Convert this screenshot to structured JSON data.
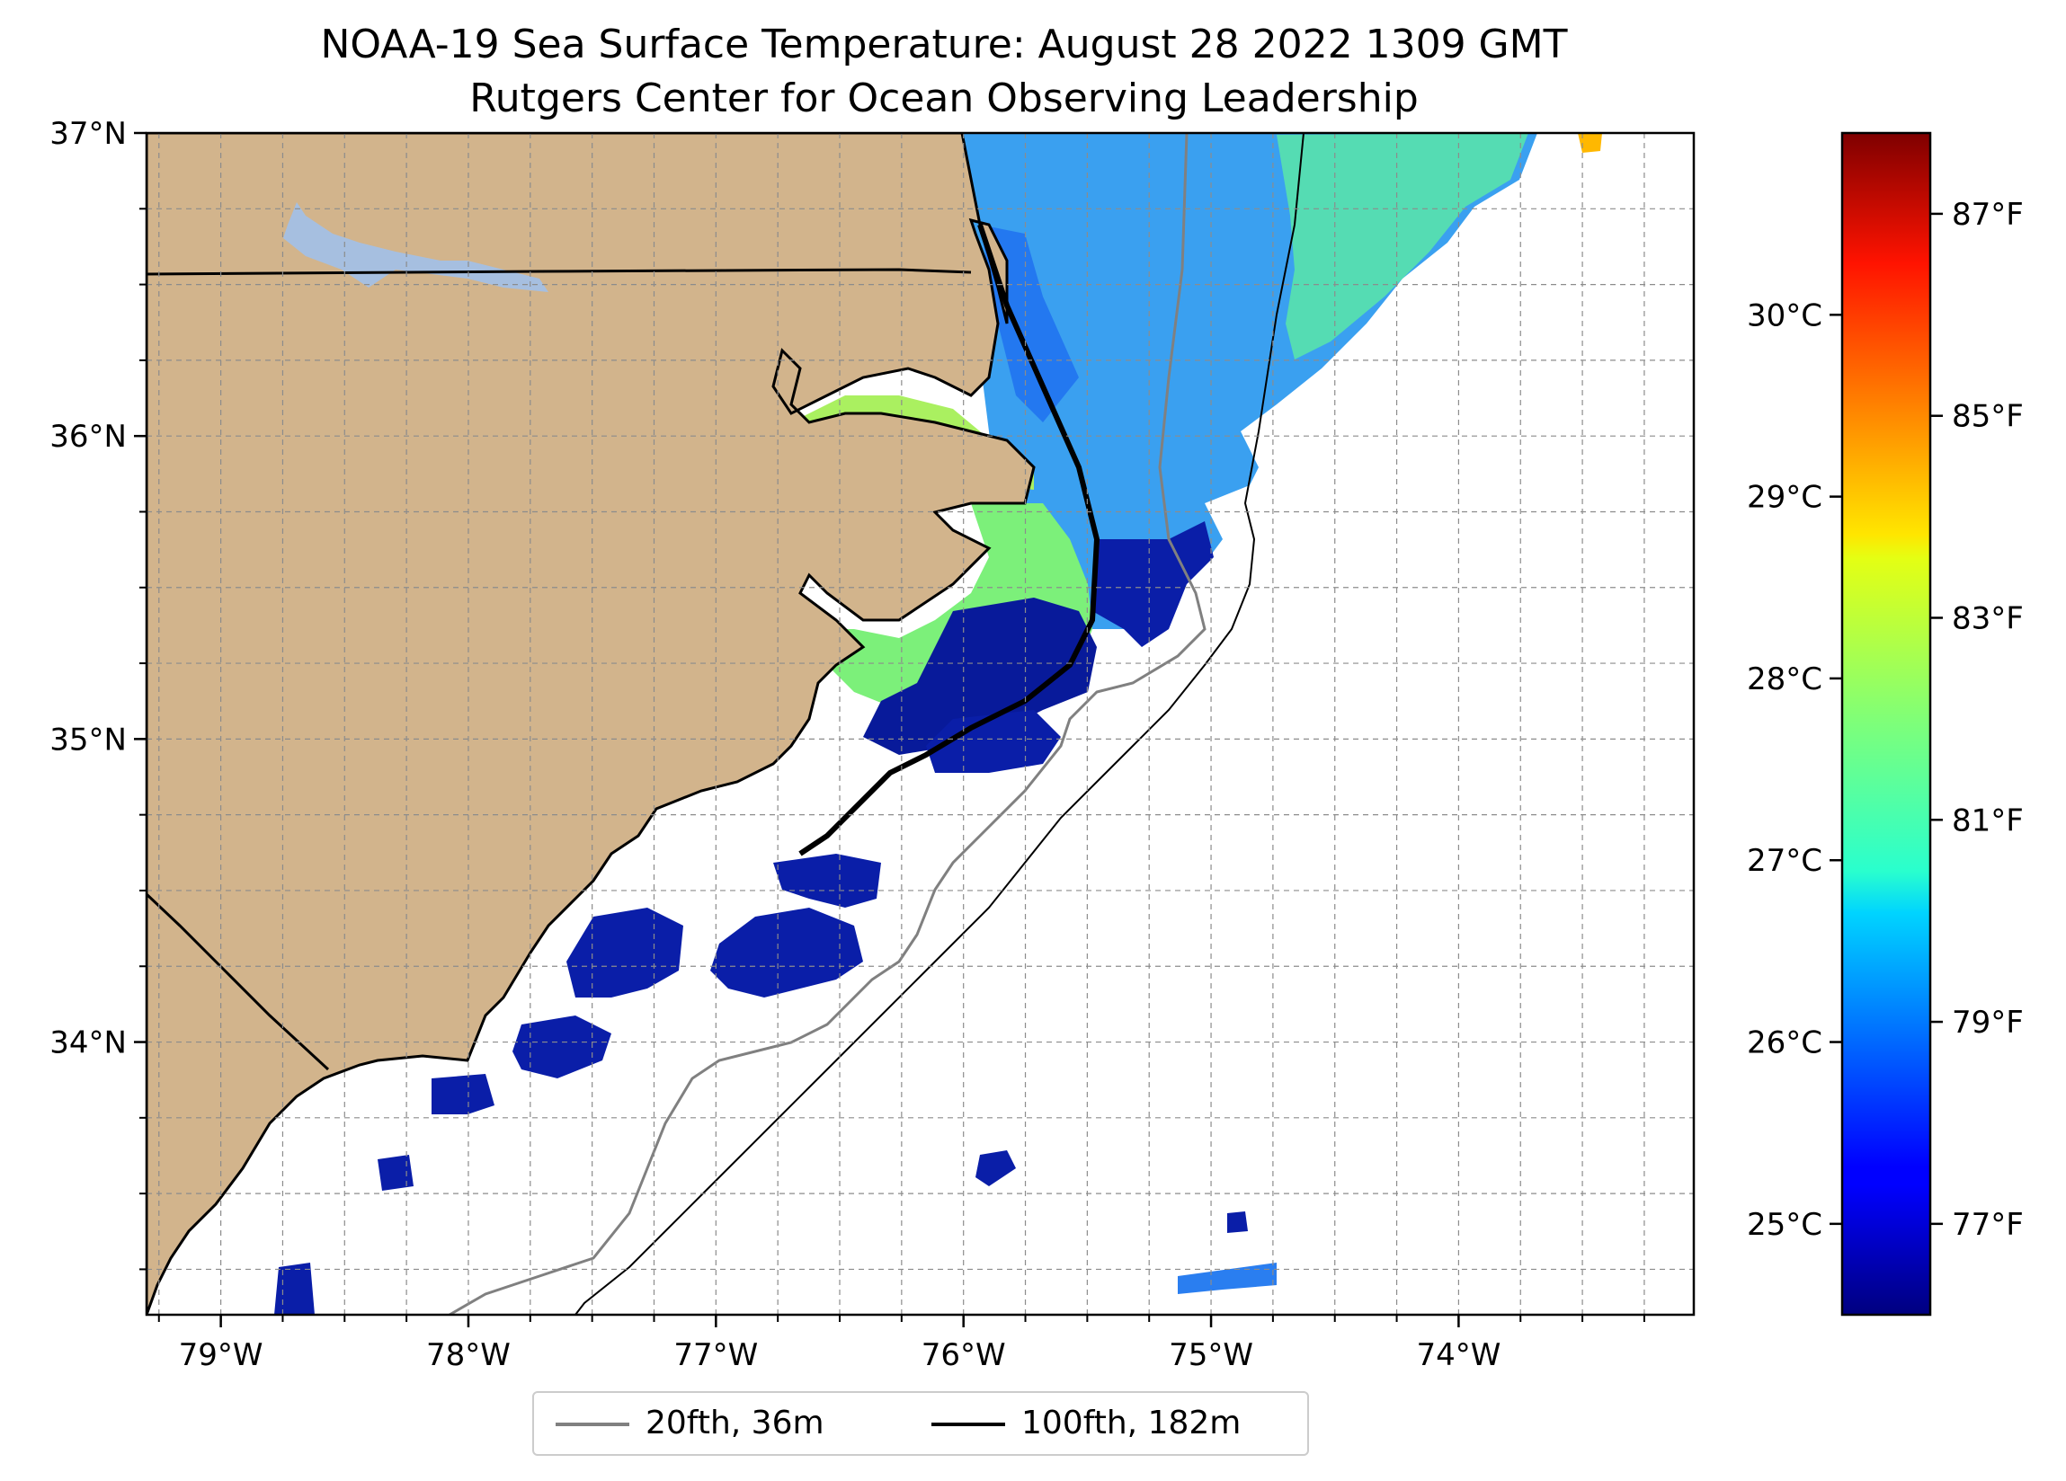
{
  "title": {
    "line1": "NOAA-19 Sea Surface Temperature: August 28 2022 1309 GMT",
    "line2": "Rutgers Center for Ocean Observing Leadership"
  },
  "map": {
    "extent": {
      "lon_min": -79.3,
      "lon_max": -73.05,
      "lat_min": 33.1,
      "lat_max": 37.0
    },
    "lat_ticks": [
      {
        "value": 37,
        "label": "37°N"
      },
      {
        "value": 36,
        "label": "36°N"
      },
      {
        "value": 35,
        "label": "35°N"
      },
      {
        "value": 34,
        "label": "34°N"
      }
    ],
    "lon_ticks": [
      {
        "value": -79,
        "label": "79°W"
      },
      {
        "value": -78,
        "label": "78°W"
      },
      {
        "value": -77,
        "label": "77°W"
      },
      {
        "value": -76,
        "label": "76°W"
      },
      {
        "value": -75,
        "label": "75°W"
      },
      {
        "value": -74,
        "label": "74°W"
      }
    ],
    "grid_interval_deg": 0.25,
    "grid": true,
    "colors": {
      "land": "#d2b48c",
      "ocean_no_data": "#ffffff",
      "lake": "#a6bfe0",
      "coastline": "#000000",
      "contour_20fth": "#808080",
      "contour_100fth": "#000000"
    }
  },
  "colorbar": {
    "colormap": "jet",
    "range_c": [
      24.5,
      31.0
    ],
    "ticks_c": [
      {
        "value": 25,
        "label": "25°C"
      },
      {
        "value": 26,
        "label": "26°C"
      },
      {
        "value": 27,
        "label": "27°C"
      },
      {
        "value": 28,
        "label": "28°C"
      },
      {
        "value": 29,
        "label": "29°C"
      },
      {
        "value": 30,
        "label": "30°C"
      }
    ],
    "ticks_f": [
      {
        "value": 77,
        "label": "77°F"
      },
      {
        "value": 79,
        "label": "79°F"
      },
      {
        "value": 81,
        "label": "81°F"
      },
      {
        "value": 83,
        "label": "83°F"
      },
      {
        "value": 85,
        "label": "85°F"
      },
      {
        "value": 87,
        "label": "87°F"
      }
    ]
  },
  "legend": {
    "items": [
      {
        "label": "20fth, 36m",
        "color": "#808080"
      },
      {
        "label": "100fth, 182m",
        "color": "#000000"
      }
    ]
  }
}
